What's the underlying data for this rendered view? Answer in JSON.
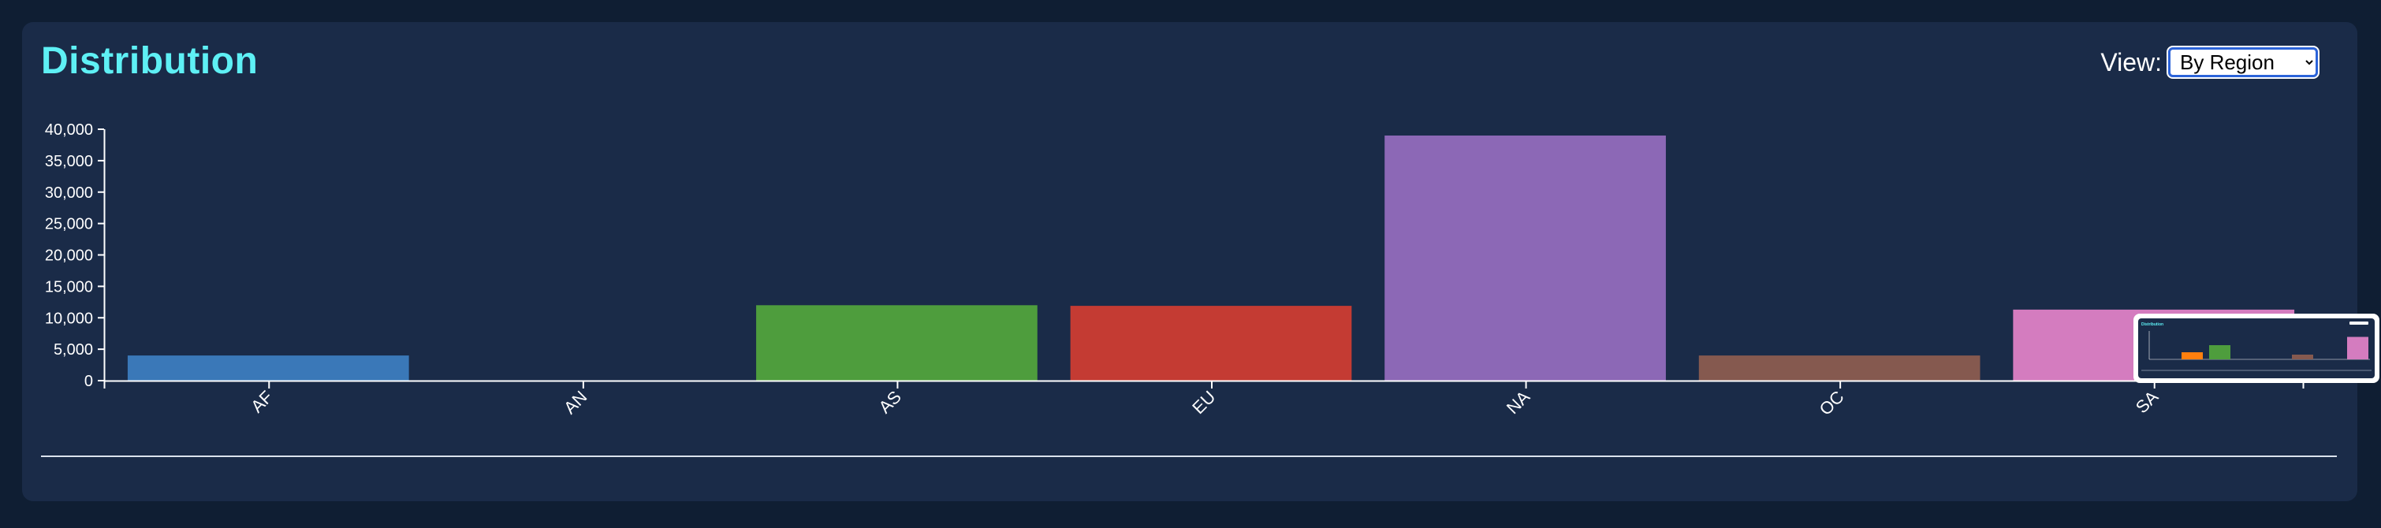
{
  "header": {
    "title": "Distribution",
    "view_label": "View:",
    "view_selected": "By Region"
  },
  "colors": {
    "background": "#0f1e33",
    "panel": "#1a2b48",
    "title": "#5ef0f5",
    "axis": "#ffffff"
  },
  "chart_data": {
    "type": "bar",
    "categories": [
      "AF",
      "AN",
      "AS",
      "EU",
      "NA",
      "OC",
      "SA"
    ],
    "values": [
      4000,
      0,
      12000,
      11900,
      39000,
      4000,
      11300
    ],
    "colors": [
      "#3a78b8",
      "#ff7f0e",
      "#4e9d3d",
      "#c43b33",
      "#8c68b6",
      "#85594f",
      "#d47cbf"
    ],
    "ylim": [
      0,
      40000
    ],
    "yticks": [
      0,
      5000,
      10000,
      15000,
      20000,
      25000,
      30000,
      35000,
      40000
    ],
    "ytick_labels": [
      "0",
      "5,000",
      "10,000",
      "15,000",
      "20,000",
      "25,000",
      "30,000",
      "35,000",
      "40,000"
    ],
    "grid": false,
    "xlabel": "",
    "ylabel": ""
  },
  "minimap": {
    "title": "Distribution",
    "values": [
      0,
      30,
      60,
      0,
      0,
      20,
      0,
      95
    ],
    "colors": [
      "#3a78b8",
      "#ff7f0e",
      "#4e9d3d",
      "#c43b33",
      "#8c68b6",
      "#85594f",
      "#d47cbf",
      "#d47cbf"
    ]
  }
}
